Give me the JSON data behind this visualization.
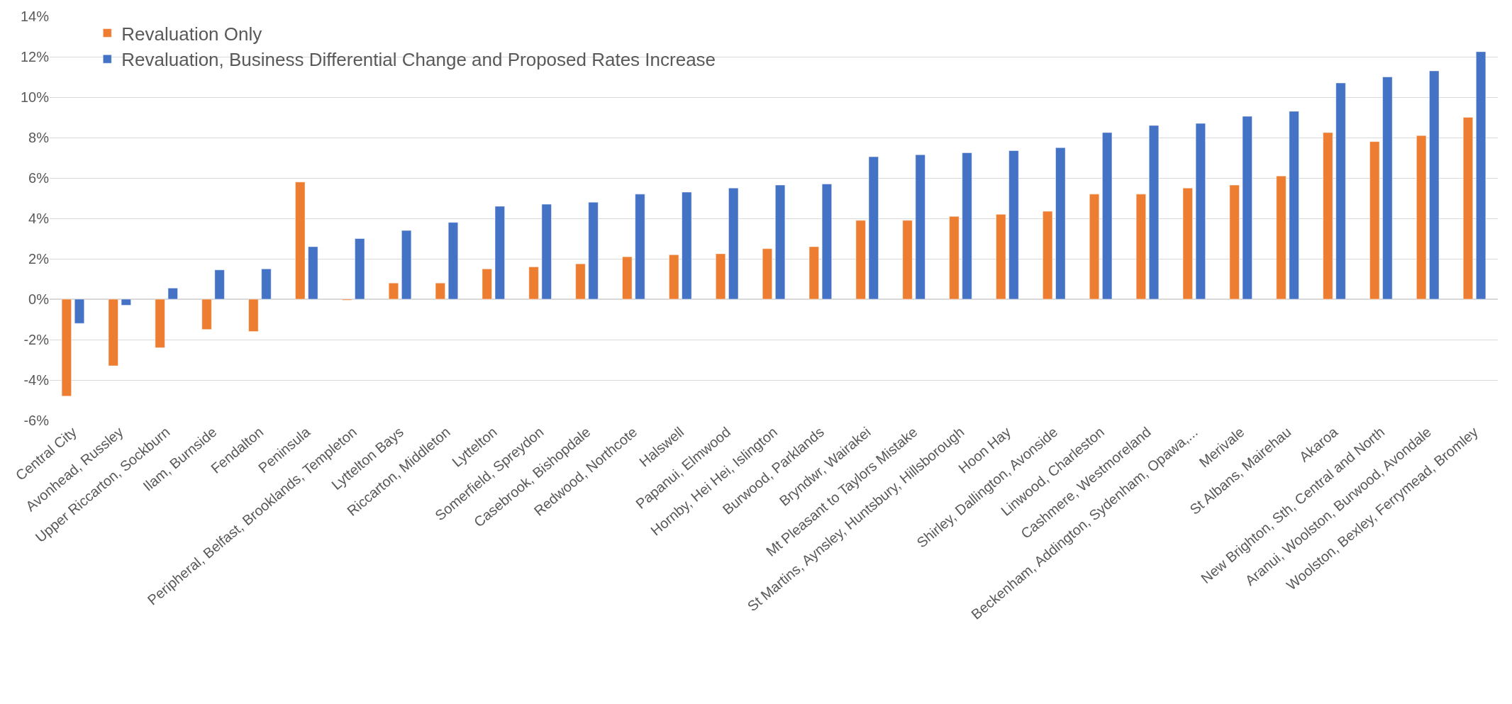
{
  "chart_data": {
    "type": "bar",
    "categories": [
      "Central City",
      "Avonhead, Russley",
      "Upper Riccarton, Sockburn",
      "Ilam, Burnside",
      "Fendalton",
      "Peninsula",
      "Peripheral, Belfast, Brooklands, Templeton",
      "Lyttelton Bays",
      "Riccarton, Middleton",
      "Lyttelton",
      "Somerfield, Spreydon",
      "Casebrook, Bishopdale",
      "Redwood, Northcote",
      "Halswell",
      "Papanui, Elmwood",
      "Hornby, Hei Hei, Islington",
      "Burwood, Parklands",
      "Bryndwr, Wairakei",
      "Mt Pleasant to Taylors Mistake",
      "St Martins, Aynsley, Huntsbury, Hillsborough",
      "Hoon Hay",
      "Shirley, Dallington, Avonside",
      "Linwood, Charleston",
      "Cashmere, Westmoreland",
      "Beckenham, Addington, Sydenham, Opawa,...",
      "Merivale",
      "St Albans, Mairehau",
      "Akaroa",
      "New Brighton, Sth, Central and North",
      "Aranui, Woolston, Burwood, Avondale",
      "Woolston, Bexley, Ferrymead, Bromley"
    ],
    "series": [
      {
        "name": "Revaluation Only",
        "color": "#ed7d31",
        "values": [
          -4.8,
          -3.3,
          -2.4,
          -1.5,
          -1.6,
          5.8,
          -0.05,
          0.8,
          0.8,
          1.5,
          1.6,
          1.75,
          2.1,
          2.2,
          2.25,
          2.5,
          2.6,
          3.9,
          3.9,
          4.1,
          4.2,
          4.35,
          5.2,
          5.2,
          5.5,
          5.65,
          6.1,
          8.25,
          7.8,
          8.1,
          9.0
        ]
      },
      {
        "name": "Revaluation, Business Differential Change and Proposed Rates Increase",
        "color": "#4472c4",
        "values": [
          -1.2,
          -0.3,
          0.55,
          1.45,
          1.5,
          2.6,
          3.0,
          3.4,
          3.8,
          4.6,
          4.7,
          4.8,
          5.2,
          5.3,
          5.5,
          5.65,
          5.7,
          7.05,
          7.15,
          7.25,
          7.35,
          7.5,
          8.25,
          8.6,
          8.7,
          9.05,
          9.3,
          10.7,
          11.0,
          11.3,
          12.25
        ]
      }
    ],
    "ylim": [
      -6,
      14
    ],
    "yticks": [
      {
        "value": -6,
        "label": "-6%"
      },
      {
        "value": -4,
        "label": "-4%"
      },
      {
        "value": -2,
        "label": "-2%"
      },
      {
        "value": 0,
        "label": "0%"
      },
      {
        "value": 2,
        "label": "2%"
      },
      {
        "value": 4,
        "label": "4%"
      },
      {
        "value": 6,
        "label": "6%"
      },
      {
        "value": 8,
        "label": "8%"
      },
      {
        "value": 10,
        "label": "10%"
      },
      {
        "value": 12,
        "label": "12%"
      },
      {
        "value": 14,
        "label": "14%"
      }
    ],
    "grid": "y",
    "legend": "top left"
  }
}
